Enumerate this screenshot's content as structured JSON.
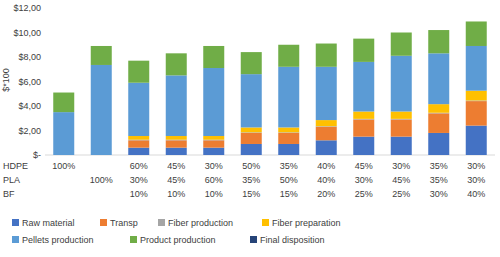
{
  "chart_data": {
    "type": "bar",
    "stacked": true,
    "y_label": "$*100",
    "ylim": [
      0,
      12
    ],
    "yticks": [
      {
        "value": 0,
        "label": "$-"
      },
      {
        "value": 2,
        "label": "$2,00"
      },
      {
        "value": 4,
        "label": "$4,00"
      },
      {
        "value": 6,
        "label": "$6,00"
      },
      {
        "value": 8,
        "label": "$8,00"
      },
      {
        "value": 10,
        "label": "$10,00"
      },
      {
        "value": 12,
        "label": "$12,00"
      }
    ],
    "grid": false,
    "legend": "bottom",
    "category_table": {
      "row_labels": [
        "HDPE",
        "PLA",
        "BF"
      ],
      "rows": [
        [
          "100%",
          null,
          "60%",
          "45%",
          "30%",
          "50%",
          "35%",
          "40%",
          "45%",
          "30%",
          "35%",
          "30%"
        ],
        [
          null,
          "100%",
          "30%",
          "45%",
          "60%",
          "35%",
          "50%",
          "40%",
          "30%",
          "45%",
          "35%",
          "30%"
        ],
        [
          null,
          null,
          "10%",
          "10%",
          "10%",
          "15%",
          "15%",
          "20%",
          "25%",
          "25%",
          "30%",
          "40%"
        ]
      ]
    },
    "series": [
      {
        "name": "Raw material",
        "color": "#4472c4",
        "values": [
          0,
          0,
          0.6,
          0.6,
          0.6,
          0.9,
          0.9,
          1.2,
          1.5,
          1.5,
          1.8,
          2.4
        ]
      },
      {
        "name": "Transp",
        "color": "#ed7d31",
        "values": [
          0,
          0,
          0.6,
          0.6,
          0.6,
          0.9,
          0.9,
          1.1,
          1.4,
          1.4,
          1.6,
          2.0
        ]
      },
      {
        "name": "Fiber production",
        "color": "#a5a5a5",
        "values": [
          0,
          0,
          0.05,
          0.05,
          0.05,
          0.05,
          0.05,
          0.05,
          0.05,
          0.05,
          0.05,
          0.05
        ]
      },
      {
        "name": "Fiber preparation",
        "color": "#ffc000",
        "values": [
          0,
          0,
          0.3,
          0.3,
          0.3,
          0.4,
          0.4,
          0.5,
          0.6,
          0.6,
          0.7,
          0.8
        ]
      },
      {
        "name": "Pellets production",
        "color": "#5b9bd5",
        "values": [
          3.5,
          7.35,
          4.35,
          4.95,
          5.55,
          4.35,
          4.95,
          4.35,
          4.05,
          4.55,
          4.15,
          3.65
        ]
      },
      {
        "name": "Product production",
        "color": "#70ad47",
        "values": [
          1.6,
          1.55,
          1.8,
          1.8,
          1.8,
          1.8,
          1.8,
          1.9,
          1.9,
          1.9,
          1.9,
          2.0
        ]
      },
      {
        "name": "Final disposition",
        "color": "#264478",
        "values": [
          0,
          0,
          0,
          0,
          0,
          0,
          0,
          0,
          0,
          0,
          0,
          0
        ]
      }
    ]
  }
}
